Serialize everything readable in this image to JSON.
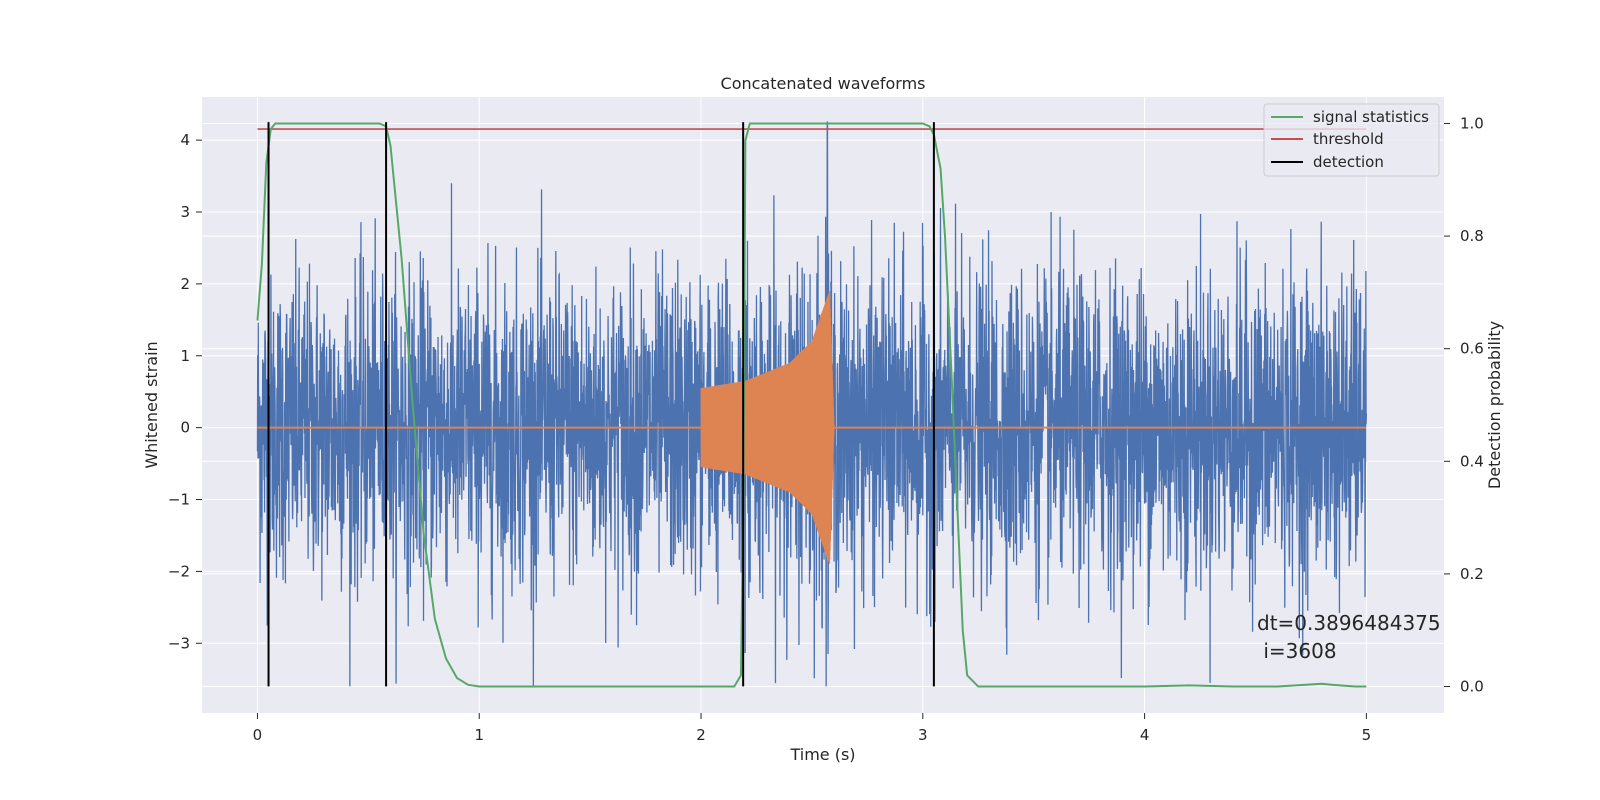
{
  "chart_data": {
    "type": "line",
    "title": "Concatenated waveforms",
    "xlabel": "Time (s)",
    "ylabel": "Whitened strain",
    "y2label": "Detection probability",
    "xlim": [
      -0.25,
      5.35
    ],
    "ylim": [
      -3.97,
      4.6
    ],
    "y2lim": [
      -0.047,
      1.047
    ],
    "xticks": [
      0,
      1,
      2,
      3,
      4,
      5
    ],
    "yticks": [
      -3,
      -2,
      -1,
      0,
      1,
      2,
      3,
      4
    ],
    "y2ticks": [
      0.0,
      0.2,
      0.4,
      0.6,
      0.8,
      1.0
    ],
    "grid": true,
    "legend_position": "top-right",
    "legend": [
      "signal statistics",
      "threshold",
      "detection"
    ],
    "colors": {
      "strain": "#4c72b0",
      "injection": "#dd8452",
      "signal_statistics": "#55a868",
      "threshold": "#c44e52",
      "detection": "#000000",
      "plot_bg": "#eaeaf2",
      "grid": "#ffffff"
    },
    "strain": {
      "x_range": [
        0,
        5
      ],
      "envelope_max": 3.4,
      "envelope_min": -3.6,
      "peak_value": 4.25,
      "peak_time": 2.57
    },
    "injection": {
      "start_time": 2.0,
      "end_time": 2.6,
      "amplitude_envelope": [
        {
          "t": 2.0,
          "a": 0.55
        },
        {
          "t": 2.2,
          "a": 0.65
        },
        {
          "t": 2.4,
          "a": 0.9
        },
        {
          "t": 2.5,
          "a": 1.2
        },
        {
          "t": 2.58,
          "a": 1.9
        },
        {
          "t": 2.6,
          "a": 0.05
        }
      ]
    },
    "signal_statistics": {
      "x": [
        0.0,
        0.02,
        0.04,
        0.06,
        0.08,
        0.1,
        0.55,
        0.58,
        0.6,
        0.65,
        0.7,
        0.75,
        0.8,
        0.85,
        0.9,
        0.95,
        1.0,
        2.15,
        2.18,
        2.19,
        2.2,
        2.22,
        3.0,
        3.03,
        3.05,
        3.08,
        3.1,
        3.13,
        3.16,
        3.18,
        3.2,
        3.25,
        4.0,
        4.2,
        4.4,
        4.6,
        4.8,
        4.85,
        4.95,
        5.0
      ],
      "y": [
        0.65,
        0.75,
        0.93,
        0.99,
        1.0,
        1.0,
        1.0,
        0.995,
        0.96,
        0.76,
        0.5,
        0.27,
        0.12,
        0.05,
        0.015,
        0.003,
        0.0,
        0.0,
        0.02,
        0.3,
        0.97,
        1.0,
        1.0,
        0.995,
        0.98,
        0.92,
        0.8,
        0.55,
        0.28,
        0.1,
        0.02,
        0.0,
        0.0,
        0.002,
        0.0,
        0.0,
        0.005,
        0.003,
        0.0,
        0.0
      ]
    },
    "threshold": {
      "value": 0.99,
      "x_range": [
        0,
        5
      ]
    },
    "detections": [
      0.05,
      0.58,
      2.19,
      3.05
    ],
    "annotation_lines": [
      "dt=0.3896484375",
      " i=3608"
    ]
  }
}
